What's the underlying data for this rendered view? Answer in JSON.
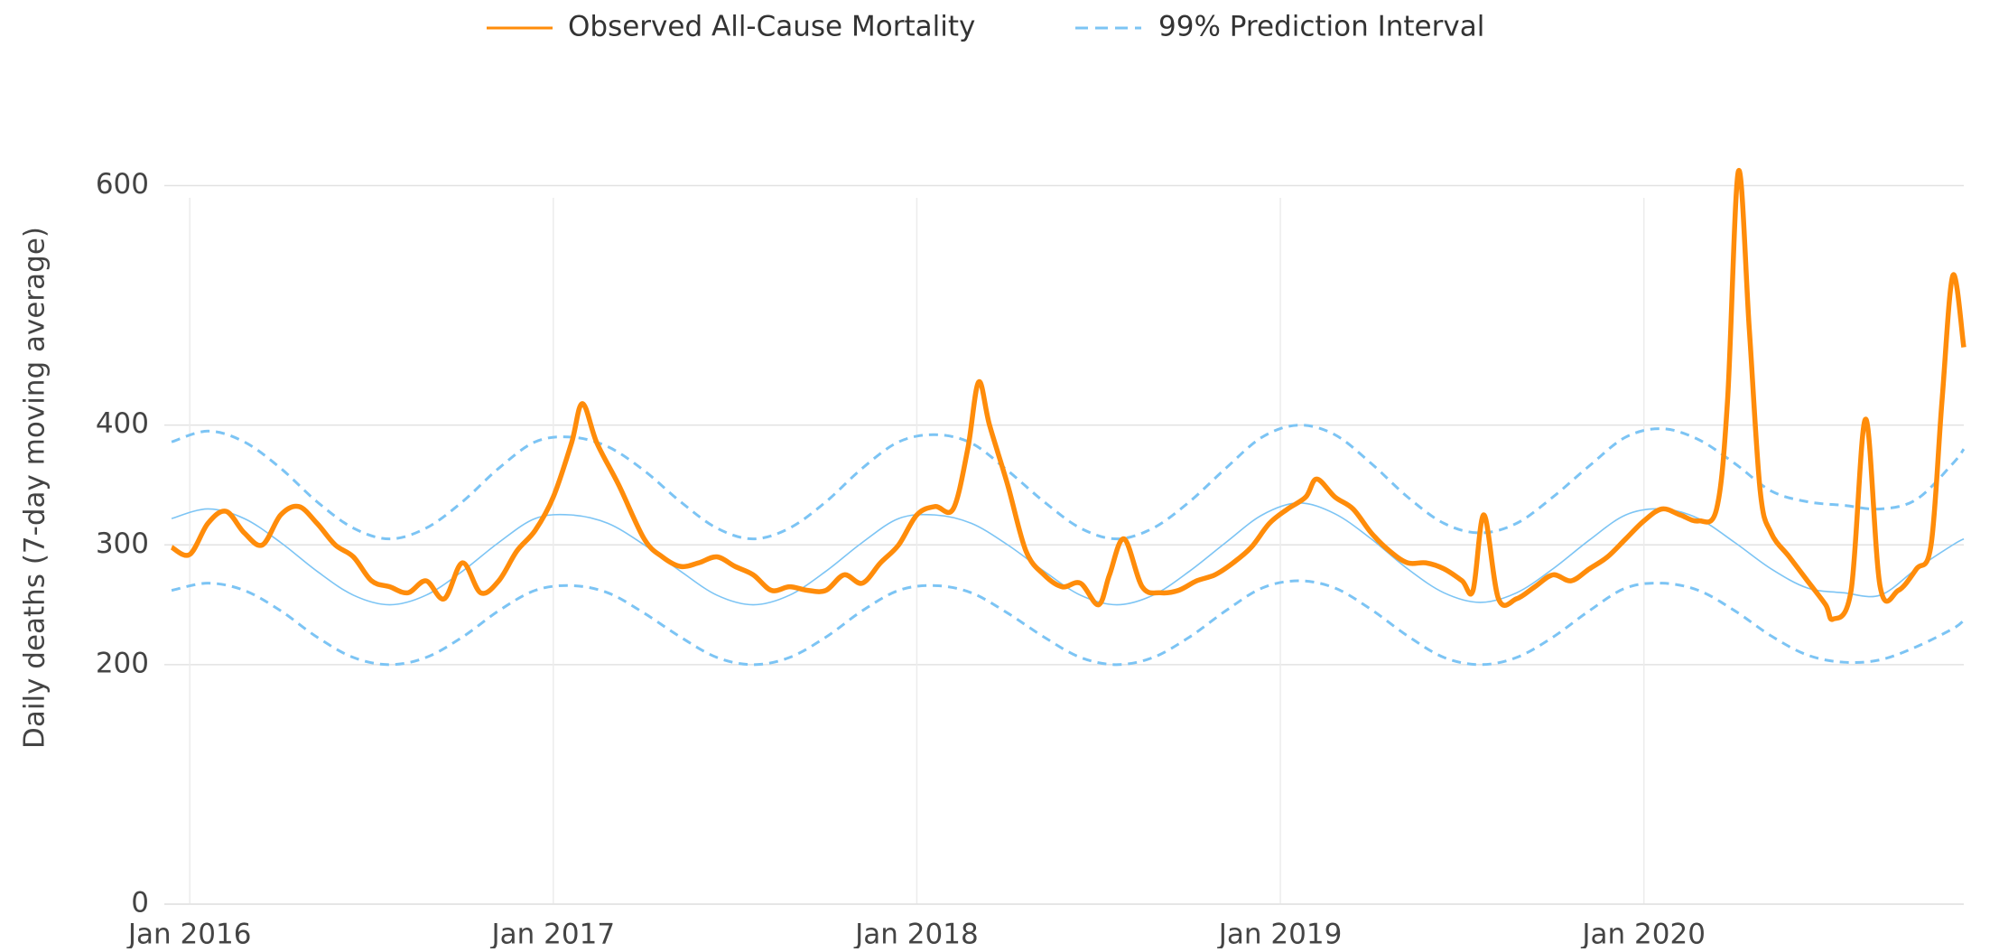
{
  "chart_data": {
    "type": "line",
    "y_label": "Daily deaths (7-day moving average)",
    "xlim": [
      2015.93,
      2020.88
    ],
    "xticks": [
      {
        "value": 2016,
        "label": "Jan 2016"
      },
      {
        "value": 2017,
        "label": "Jan 2017"
      },
      {
        "value": 2018,
        "label": "Jan 2018"
      },
      {
        "value": 2019,
        "label": "Jan 2019"
      },
      {
        "value": 2020,
        "label": "Jan 2020"
      }
    ],
    "ylim": [
      0,
      620
    ],
    "yticks": [
      0,
      200,
      300,
      400,
      600
    ],
    "grid": true,
    "legend": "top",
    "series": [
      {
        "name": "Observed All-Cause Mortality",
        "color": "#ff8c0a",
        "x": [
          2015.95,
          2016.0,
          2016.05,
          2016.1,
          2016.15,
          2016.2,
          2016.25,
          2016.3,
          2016.35,
          2016.4,
          2016.45,
          2016.5,
          2016.55,
          2016.6,
          2016.65,
          2016.7,
          2016.75,
          2016.8,
          2016.85,
          2016.9,
          2016.95,
          2017.0,
          2017.05,
          2017.08,
          2017.12,
          2017.18,
          2017.25,
          2017.3,
          2017.35,
          2017.4,
          2017.45,
          2017.5,
          2017.55,
          2017.6,
          2017.65,
          2017.7,
          2017.75,
          2017.8,
          2017.85,
          2017.9,
          2017.95,
          2018.0,
          2018.05,
          2018.1,
          2018.14,
          2018.17,
          2018.2,
          2018.25,
          2018.3,
          2018.35,
          2018.4,
          2018.45,
          2018.5,
          2018.53,
          2018.57,
          2018.62,
          2018.67,
          2018.72,
          2018.77,
          2018.82,
          2018.87,
          2018.92,
          2018.97,
          2019.02,
          2019.07,
          2019.1,
          2019.15,
          2019.2,
          2019.25,
          2019.3,
          2019.35,
          2019.4,
          2019.45,
          2019.5,
          2019.53,
          2019.56,
          2019.6,
          2019.65,
          2019.7,
          2019.75,
          2019.8,
          2019.85,
          2019.9,
          2019.95,
          2020.0,
          2020.05,
          2020.1,
          2020.15,
          2020.2,
          2020.23,
          2020.26,
          2020.29,
          2020.32,
          2020.35,
          2020.4,
          2020.45,
          2020.5,
          2020.52,
          2020.57,
          2020.61,
          2020.65,
          2020.7,
          2020.75,
          2020.79,
          2020.82,
          2020.85,
          2020.88
        ],
        "values": [
          298,
          292,
          318,
          328,
          310,
          300,
          325,
          332,
          318,
          300,
          290,
          270,
          265,
          260,
          270,
          255,
          285,
          260,
          270,
          295,
          312,
          340,
          385,
          418,
          385,
          350,
          305,
          290,
          282,
          285,
          290,
          282,
          275,
          262,
          265,
          262,
          262,
          275,
          268,
          285,
          300,
          325,
          332,
          330,
          380,
          436,
          400,
          350,
          295,
          275,
          265,
          268,
          250,
          275,
          305,
          265,
          260,
          262,
          270,
          275,
          285,
          298,
          318,
          330,
          340,
          355,
          340,
          330,
          310,
          295,
          285,
          285,
          280,
          270,
          262,
          325,
          255,
          255,
          265,
          275,
          270,
          280,
          290,
          305,
          320,
          330,
          325,
          320,
          330,
          420,
          612,
          480,
          345,
          310,
          290,
          270,
          250,
          238,
          262,
          405,
          265,
          262,
          280,
          300,
          420,
          525,
          465
        ]
      },
      {
        "name": "99% Prediction Interval",
        "color": "#7cc4f4",
        "x": [
          2015.95,
          2016.05,
          2016.15,
          2016.25,
          2016.35,
          2016.45,
          2016.55,
          2016.65,
          2016.75,
          2016.85,
          2016.95,
          2017.05,
          2017.15,
          2017.25,
          2017.35,
          2017.45,
          2017.55,
          2017.65,
          2017.75,
          2017.85,
          2017.95,
          2018.05,
          2018.15,
          2018.25,
          2018.35,
          2018.45,
          2018.55,
          2018.65,
          2018.75,
          2018.85,
          2018.95,
          2019.05,
          2019.15,
          2019.25,
          2019.35,
          2019.45,
          2019.55,
          2019.65,
          2019.75,
          2019.85,
          2019.95,
          2020.05,
          2020.15,
          2020.25,
          2020.35,
          2020.45,
          2020.55,
          2020.65,
          2020.75,
          2020.85,
          2020.88
        ],
        "upper": [
          386,
          395,
          386,
          364,
          336,
          314,
          305,
          314,
          336,
          364,
          386,
          390,
          382,
          362,
          336,
          314,
          305,
          314,
          336,
          364,
          386,
          392,
          385,
          362,
          336,
          314,
          305,
          314,
          336,
          364,
          390,
          400,
          392,
          368,
          340,
          318,
          310,
          318,
          340,
          366,
          390,
          397,
          388,
          368,
          345,
          336,
          333,
          330,
          338,
          368,
          380
        ],
        "values": [
          322,
          330,
          322,
          302,
          278,
          258,
          250,
          258,
          278,
          302,
          322,
          325,
          318,
          300,
          278,
          258,
          250,
          258,
          278,
          302,
          322,
          325,
          318,
          300,
          278,
          258,
          250,
          258,
          278,
          302,
          325,
          335,
          326,
          305,
          280,
          260,
          252,
          260,
          280,
          304,
          325,
          330,
          322,
          302,
          280,
          264,
          260,
          258,
          280,
          300,
          305
        ],
        "lower": [
          262,
          268,
          262,
          245,
          223,
          206,
          200,
          206,
          223,
          245,
          262,
          266,
          260,
          243,
          223,
          206,
          200,
          206,
          223,
          245,
          262,
          266,
          260,
          243,
          223,
          206,
          200,
          206,
          223,
          245,
          264,
          270,
          264,
          246,
          224,
          206,
          200,
          206,
          223,
          245,
          264,
          268,
          262,
          245,
          224,
          208,
          202,
          204,
          215,
          230,
          237
        ]
      }
    ]
  }
}
